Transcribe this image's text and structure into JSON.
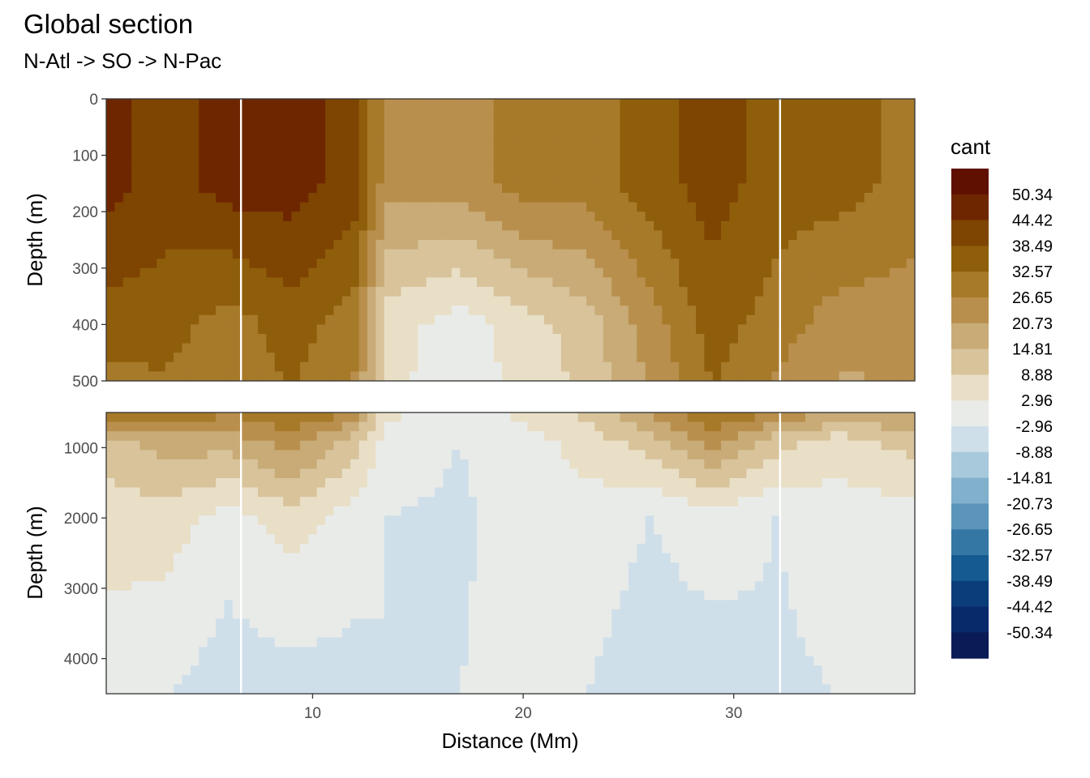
{
  "title": "Global section",
  "subtitle": "N-Atl -> SO -> N-Pac",
  "chart_data": {
    "type": "heatmap",
    "variable": "cant",
    "xlabel": "Distance (Mm)",
    "x_ticks": [
      10,
      20,
      30
    ],
    "xlim": [
      0.2,
      38.6
    ],
    "panels": [
      {
        "ylabel": "Depth (m)",
        "ylim": [
          0,
          500
        ],
        "y_ticks": [
          0,
          100,
          200,
          300,
          400,
          500
        ],
        "y_tick_labels": [
          "0",
          "100",
          "200",
          "300",
          "400",
          "500"
        ]
      },
      {
        "ylabel": "Depth (m)",
        "ylim": [
          500,
          4500
        ],
        "y_ticks": [
          1000,
          2000,
          3000,
          4000
        ],
        "y_tick_labels": [
          "1000",
          "2000",
          "3000",
          "4000"
        ]
      }
    ],
    "legend": {
      "title": "cant",
      "position": "right",
      "labels": [
        "50.34",
        "44.42",
        "38.49",
        "32.57",
        "26.65",
        "20.73",
        "14.81",
        "8.88",
        "2.96",
        "-2.96",
        "-8.88",
        "-14.81",
        "-20.73",
        "-26.65",
        "-32.57",
        "-38.49",
        "-44.42",
        "-50.34"
      ],
      "colors": [
        "#5f1000",
        "#6e2600",
        "#7e4402",
        "#8f5e0b",
        "#a77a2a",
        "#b98f4d",
        "#c8ab76",
        "#d8c39b",
        "#e9dfc7",
        "#e9ebe8",
        "#cfdfea",
        "#a8c9dc",
        "#80b0cb",
        "#5b95bb",
        "#3477a5",
        "#155a91",
        "#0b3d7a",
        "#082a6a",
        "#0a1b56"
      ]
    },
    "sections": [
      {
        "x": 0.2,
        "top": 50.3,
        "mid": 38.5,
        "deep": 14.8,
        "bottom": 8.9,
        "floor": 2.0
      },
      {
        "x": 3.0,
        "top": 44.4,
        "mid": 38.5,
        "deep": 20.7,
        "bottom": 8.9,
        "floor": 0.0
      },
      {
        "x": 6.0,
        "top": 50.3,
        "mid": 32.6,
        "deep": 20.7,
        "bottom": 2.9,
        "floor": -3.0
      },
      {
        "x": 9.0,
        "top": 50.3,
        "mid": 38.5,
        "deep": 26.6,
        "bottom": 8.9,
        "floor": -3.0
      },
      {
        "x": 12.0,
        "top": 44.4,
        "mid": 32.6,
        "deep": 14.8,
        "bottom": 2.9,
        "floor": -2.0
      },
      {
        "x": 13.5,
        "top": 26.6,
        "mid": 8.9,
        "deep": 3.0,
        "bottom": 0.0,
        "floor": 0.0
      },
      {
        "x": 17.0,
        "top": 26.6,
        "mid": 2.9,
        "deep": 0.0,
        "bottom": -1.0,
        "floor": 0.0
      },
      {
        "x": 20.0,
        "top": 32.6,
        "mid": 8.9,
        "deep": 2.9,
        "bottom": 3.0,
        "floor": 2.0
      },
      {
        "x": 23.0,
        "top": 32.6,
        "mid": 14.8,
        "deep": 8.9,
        "bottom": 2.9,
        "floor": 0.0
      },
      {
        "x": 26.0,
        "top": 38.5,
        "mid": 26.6,
        "deep": 14.8,
        "bottom": 0.0,
        "floor": -3.0
      },
      {
        "x": 29.0,
        "top": 44.4,
        "mid": 38.5,
        "deep": 26.6,
        "bottom": 2.9,
        "floor": -3.0
      },
      {
        "x": 32.0,
        "top": 38.5,
        "mid": 32.6,
        "deep": 14.8,
        "bottom": 0.0,
        "floor": -1.0
      },
      {
        "x": 35.0,
        "top": 38.5,
        "mid": 26.6,
        "deep": 8.9,
        "bottom": 2.9,
        "floor": 0.0
      },
      {
        "x": 38.6,
        "top": 32.6,
        "mid": 26.6,
        "deep": 14.8,
        "bottom": 2.9,
        "floor": 0.0
      }
    ],
    "section_depths": [
      0,
      150,
      400,
      900,
      2000,
      4500
    ],
    "gaps_x": [
      6.6,
      32.2
    ]
  }
}
